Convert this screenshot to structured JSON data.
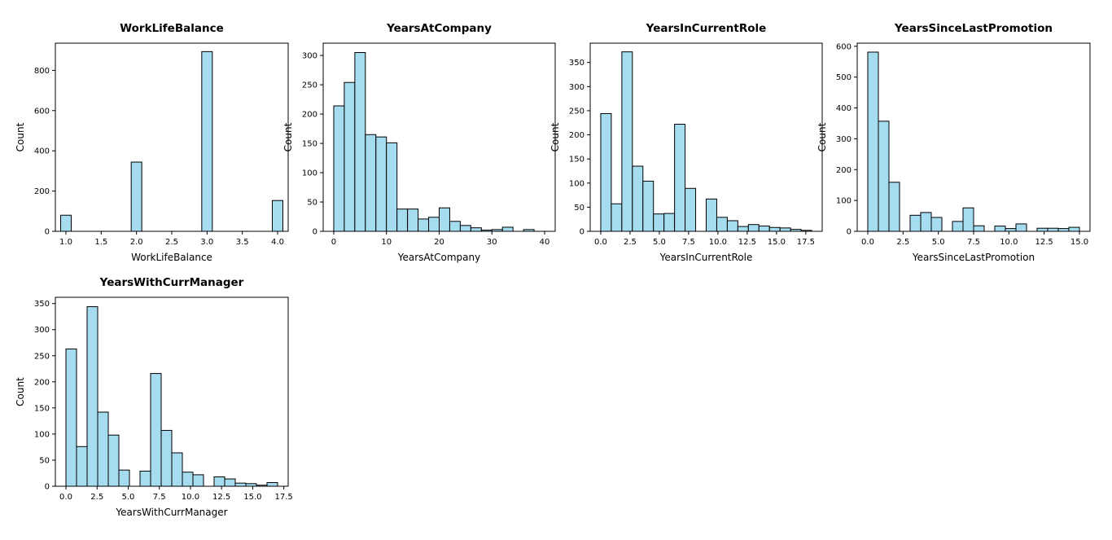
{
  "style": {
    "bar_fill": "#a6dcef",
    "bar_edge": "#000000"
  },
  "chart_data": [
    {
      "type": "bar",
      "title": "WorkLifeBalance",
      "xlabel": "WorkLifeBalance",
      "ylabel": "Count",
      "xlim": [
        0.85,
        4.15
      ],
      "ylim": [
        0,
        935
      ],
      "xticks": [
        1.0,
        1.5,
        2.0,
        2.5,
        3.0,
        3.5,
        4.0
      ],
      "xtick_labels": [
        "1.0",
        "1.5",
        "2.0",
        "2.5",
        "3.0",
        "3.5",
        "4.0"
      ],
      "yticks": [
        0,
        200,
        400,
        600,
        800
      ],
      "bins": [
        [
          0.85,
          1.15
        ],
        [
          1.85,
          2.15
        ],
        [
          2.85,
          3.15
        ],
        [
          3.85,
          4.15
        ]
      ],
      "bins_note": "",
      "x": [
        1.0,
        2.0,
        3.0,
        4.0
      ],
      "values": [
        80,
        344,
        893,
        153
      ],
      "bar_width": 0.15
    },
    {
      "type": "bar",
      "title": "YearsAtCompany",
      "xlabel": "YearsAtCompany",
      "ylabel": "Count",
      "xlim": [
        -2,
        42
      ],
      "ylim": [
        0,
        321
      ],
      "xticks": [
        0,
        10,
        20,
        30,
        40
      ],
      "xtick_labels": [
        "0",
        "10",
        "20",
        "30",
        "40"
      ],
      "yticks": [
        0,
        50,
        100,
        150,
        200,
        250,
        300
      ],
      "x": [
        1,
        3,
        5,
        7,
        9,
        11,
        13,
        15,
        17,
        19,
        21,
        23,
        25,
        27,
        29,
        31,
        33,
        35,
        37,
        39
      ],
      "values": [
        214,
        254,
        305,
        165,
        161,
        151,
        38,
        38,
        21,
        24,
        40,
        17,
        10,
        6,
        2,
        3,
        7,
        0,
        3,
        0
      ],
      "bar_width": 2
    },
    {
      "type": "bar",
      "title": "YearsInCurrentRole",
      "xlabel": "YearsInCurrentRole",
      "ylabel": "Count",
      "xlim": [
        -0.9,
        18.9
      ],
      "ylim": [
        0,
        390
      ],
      "xticks": [
        0.0,
        2.5,
        5.0,
        7.5,
        10.0,
        12.5,
        15.0,
        17.5
      ],
      "xtick_labels": [
        "0.0",
        "2.5",
        "5.0",
        "7.5",
        "10.0",
        "12.5",
        "15.0",
        "17.5"
      ],
      "yticks": [
        0,
        50,
        100,
        150,
        200,
        250,
        300,
        350
      ],
      "x": [
        0.45,
        1.35,
        2.25,
        3.15,
        4.05,
        4.95,
        5.85,
        6.75,
        7.65,
        8.55,
        9.45,
        10.35,
        11.25,
        12.15,
        13.05,
        13.95,
        14.85,
        15.75,
        16.65,
        17.55
      ],
      "values": [
        244,
        57,
        372,
        135,
        104,
        36,
        37,
        222,
        89,
        0,
        67,
        29,
        22,
        10,
        14,
        11,
        8,
        7,
        4,
        2
      ],
      "bar_width": 0.9
    },
    {
      "type": "bar",
      "title": "YearsSinceLastPromotion",
      "xlabel": "YearsSinceLastPromotion",
      "ylabel": "Count",
      "xlim": [
        -0.75,
        15.75
      ],
      "ylim": [
        0,
        610
      ],
      "xticks": [
        0.0,
        2.5,
        5.0,
        7.5,
        10.0,
        12.5,
        15.0
      ],
      "xtick_labels": [
        "0.0",
        "2.5",
        "5.0",
        "7.5",
        "10.0",
        "12.5",
        "15.0"
      ],
      "yticks": [
        0,
        100,
        200,
        300,
        400,
        500,
        600
      ],
      "x": [
        0.375,
        1.125,
        1.875,
        2.625,
        3.375,
        4.125,
        4.875,
        5.625,
        6.375,
        7.125,
        7.875,
        8.625,
        9.375,
        10.125,
        10.875,
        11.625,
        12.375,
        13.125,
        13.875,
        14.625
      ],
      "values": [
        581,
        357,
        159,
        0,
        52,
        61,
        45,
        0,
        32,
        76,
        18,
        0,
        17,
        9,
        24,
        0,
        10,
        10,
        9,
        13
      ],
      "bar_width": 0.75
    },
    {
      "type": "bar",
      "title": "YearsWithCurrManager",
      "xlabel": "YearsWithCurrManager",
      "ylabel": "Count",
      "xlim": [
        -0.85,
        17.85
      ],
      "ylim": [
        0,
        362
      ],
      "xticks": [
        0.0,
        2.5,
        5.0,
        7.5,
        10.0,
        12.5,
        15.0,
        17.5
      ],
      "xtick_labels": [
        "0.0",
        "2.5",
        "5.0",
        "7.5",
        "10.0",
        "12.5",
        "15.0",
        "17.5"
      ],
      "yticks": [
        0,
        50,
        100,
        150,
        200,
        250,
        300,
        350
      ],
      "x": [
        0.425,
        1.275,
        2.125,
        2.975,
        3.825,
        4.675,
        5.525,
        6.375,
        7.225,
        8.075,
        8.925,
        9.775,
        10.625,
        11.475,
        12.325,
        13.175,
        14.025,
        14.875,
        15.725,
        16.575
      ],
      "values": [
        263,
        76,
        344,
        142,
        98,
        31,
        0,
        29,
        216,
        107,
        64,
        27,
        22,
        0,
        18,
        14,
        6,
        5,
        2,
        7
      ],
      "bar_width": 0.85
    }
  ]
}
